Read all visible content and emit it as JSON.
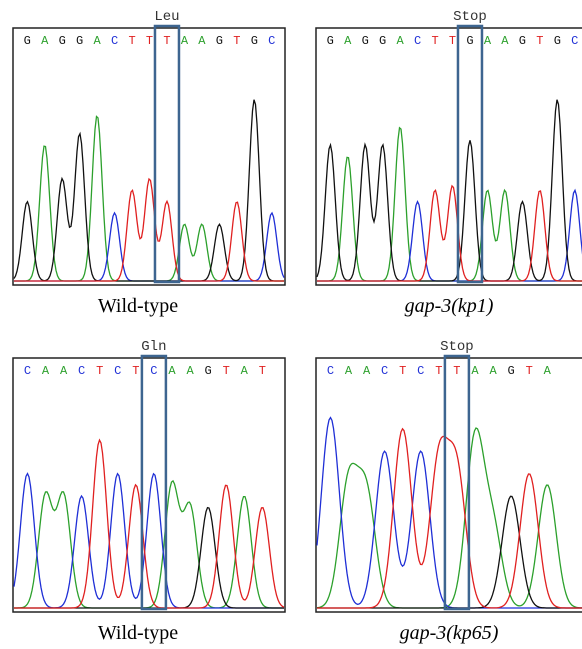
{
  "panels": [
    {
      "title": "Leu",
      "bases": [
        "G",
        "A",
        "G",
        "G",
        "A",
        "C",
        "T",
        "T",
        "T",
        "A",
        "A",
        "G",
        "T",
        "G",
        "C"
      ],
      "caption": "Wild-type"
    },
    {
      "title": "Stop",
      "bases": [
        "G",
        "A",
        "G",
        "G",
        "A",
        "C",
        "T",
        "T",
        "G",
        "A",
        "A",
        "G",
        "T",
        "G",
        "C"
      ],
      "caption": "gap-3(kp1)"
    },
    {
      "title": "Gln",
      "bases": [
        "C",
        "A",
        "A",
        "C",
        "T",
        "C",
        "T",
        "C",
        "A",
        "A",
        "G",
        "T",
        "A",
        "T"
      ],
      "caption": "Wild-type"
    },
    {
      "title": "Stop",
      "bases": [
        "C",
        "A",
        "A",
        "C",
        "T",
        "C",
        "T",
        "T",
        "A",
        "A",
        "G",
        "T",
        "A"
      ],
      "caption": "gap-3(kp65)"
    }
  ]
}
